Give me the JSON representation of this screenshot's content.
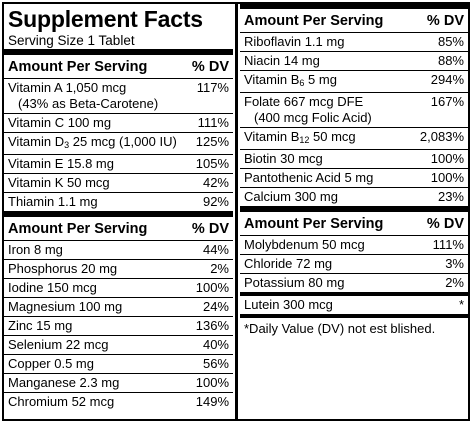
{
  "title": "Supplement Facts",
  "serving_size": "Serving Size 1 Tablet",
  "header": {
    "amount": "Amount Per Serving",
    "dv": "% DV"
  },
  "left_top": [
    {
      "name": "Vitamin A 1,050 mcg",
      "note": "(43% as Beta-Carotene)",
      "dv": "117%"
    },
    {
      "name": "Vitamin C 100 mg",
      "dv": "111%"
    },
    {
      "name_pre": "Vitamin D",
      "name_sub": "3",
      "name_post": " 25 mcg (1,000 IU)",
      "dv": "125%"
    },
    {
      "name": "Vitamin E  15.8 mg",
      "dv": "105%"
    },
    {
      "name": "Vitamin K 50 mcg",
      "dv": "42%"
    },
    {
      "name": "Thiamin 1.1 mg",
      "dv": "92%"
    }
  ],
  "left_bottom": [
    {
      "name": "Iron 8 mg",
      "dv": "44%"
    },
    {
      "name": "Phosphorus 20 mg",
      "dv": "2%"
    },
    {
      "name": "Iodine 150 mcg",
      "dv": "100%"
    },
    {
      "name": "Magnesium 100 mg",
      "dv": "24%"
    },
    {
      "name": "Zinc 15 mg",
      "dv": "136%"
    },
    {
      "name": "Selenium 22 mcg",
      "dv": "40%"
    },
    {
      "name": "Copper 0.5 mg",
      "dv": "56%"
    },
    {
      "name": "Manganese 2.3 mg",
      "dv": "100%"
    },
    {
      "name": "Chromium 52 mcg",
      "dv": "149%"
    }
  ],
  "right_top": [
    {
      "name": "Riboflavin 1.1 mg",
      "dv": "85%"
    },
    {
      "name": "Niacin 14 mg",
      "dv": "88%"
    },
    {
      "name_pre": "Vitamin B",
      "name_sub": "6",
      "name_post": " 5 mg",
      "dv": "294%"
    },
    {
      "name": "Folate 667 mcg DFE",
      "note": "(400 mcg Folic Acid)",
      "dv": "167%"
    },
    {
      "name_pre": "Vitamin B",
      "name_sub": "12",
      "name_post": " 50 mcg",
      "dv": "2,083%"
    },
    {
      "name": "Biotin 30 mcg",
      "dv": "100%"
    },
    {
      "name": "Pantothenic Acid 5 mg",
      "dv": "100%"
    },
    {
      "name": "Calcium 300 mg",
      "dv": "23%"
    }
  ],
  "right_bottom": [
    {
      "name": "Molybdenum 50 mcg",
      "dv": "111%"
    },
    {
      "name": "Chloride 72 mg",
      "dv": "3%"
    },
    {
      "name": "Potassium 80 mg",
      "dv": "2%"
    }
  ],
  "lutein": {
    "name": "Lutein 300 mcg",
    "dv": "*"
  },
  "footnote": "*Daily Value (DV) not est  blished."
}
